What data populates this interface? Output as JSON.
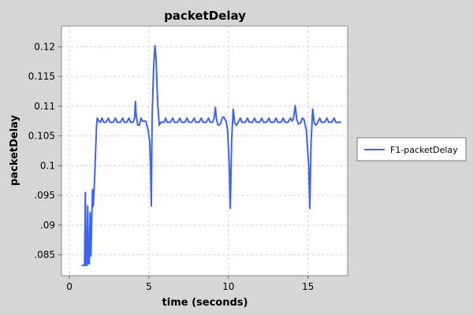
{
  "chart_data": {
    "type": "line",
    "title": "packetDelay",
    "xlabel": "time (seconds)",
    "ylabel": "packetDelay",
    "xlim": [
      -0.5,
      17.5
    ],
    "ylim": [
      0.0815,
      0.1235
    ],
    "x_ticks": [
      0,
      5,
      10,
      15
    ],
    "x_tick_labels": [
      "0",
      "5",
      "10",
      "15"
    ],
    "y_ticks": [
      0.085,
      0.09,
      0.095,
      0.1,
      0.105,
      0.11,
      0.115,
      0.12
    ],
    "y_tick_labels": [
      ".085",
      ".09",
      ".095",
      "0.1",
      "0.105",
      "0.11",
      "0.115",
      "0.12"
    ],
    "grid": true,
    "legend_position": "right",
    "series": [
      {
        "name": "F1-packetDelay",
        "color": "#3c64f0",
        "points": [
          [
            0.8,
            0.0832
          ],
          [
            0.95,
            0.0832
          ],
          [
            1.0,
            0.0955
          ],
          [
            1.05,
            0.0832
          ],
          [
            1.1,
            0.0832
          ],
          [
            1.15,
            0.0932
          ],
          [
            1.2,
            0.0835
          ],
          [
            1.25,
            0.0835
          ],
          [
            1.3,
            0.0921
          ],
          [
            1.35,
            0.0848
          ],
          [
            1.45,
            0.096
          ],
          [
            1.5,
            0.0932
          ],
          [
            1.55,
            0.0958
          ],
          [
            1.6,
            0.099
          ],
          [
            1.7,
            0.1065
          ],
          [
            1.75,
            0.108
          ],
          [
            1.85,
            0.1075
          ],
          [
            1.95,
            0.1073
          ],
          [
            2.05,
            0.108
          ],
          [
            2.15,
            0.1073
          ],
          [
            2.3,
            0.1073
          ],
          [
            2.45,
            0.108
          ],
          [
            2.55,
            0.1073
          ],
          [
            2.75,
            0.1073
          ],
          [
            2.9,
            0.108
          ],
          [
            3.0,
            0.1073
          ],
          [
            3.2,
            0.1073
          ],
          [
            3.35,
            0.108
          ],
          [
            3.45,
            0.1073
          ],
          [
            3.6,
            0.1073
          ],
          [
            3.75,
            0.108
          ],
          [
            3.85,
            0.1073
          ],
          [
            4.0,
            0.1073
          ],
          [
            4.1,
            0.108
          ],
          [
            4.15,
            0.1108
          ],
          [
            4.2,
            0.1085
          ],
          [
            4.3,
            0.1068
          ],
          [
            4.4,
            0.1068
          ],
          [
            4.5,
            0.108
          ],
          [
            4.6,
            0.1075
          ],
          [
            4.8,
            0.1075
          ],
          [
            4.95,
            0.106
          ],
          [
            5.05,
            0.104
          ],
          [
            5.1,
            0.1
          ],
          [
            5.15,
            0.0932
          ],
          [
            5.2,
            0.108
          ],
          [
            5.3,
            0.1168
          ],
          [
            5.38,
            0.1202
          ],
          [
            5.45,
            0.118
          ],
          [
            5.55,
            0.1105
          ],
          [
            5.65,
            0.1068
          ],
          [
            5.75,
            0.1073
          ],
          [
            5.95,
            0.1073
          ],
          [
            6.05,
            0.108
          ],
          [
            6.15,
            0.1073
          ],
          [
            6.35,
            0.1073
          ],
          [
            6.5,
            0.108
          ],
          [
            6.6,
            0.1073
          ],
          [
            6.8,
            0.1073
          ],
          [
            6.95,
            0.108
          ],
          [
            7.05,
            0.1073
          ],
          [
            7.25,
            0.1073
          ],
          [
            7.4,
            0.108
          ],
          [
            7.5,
            0.1073
          ],
          [
            7.7,
            0.1073
          ],
          [
            7.85,
            0.108
          ],
          [
            7.95,
            0.1073
          ],
          [
            8.15,
            0.1073
          ],
          [
            8.3,
            0.108
          ],
          [
            8.4,
            0.1073
          ],
          [
            8.6,
            0.1073
          ],
          [
            8.75,
            0.108
          ],
          [
            8.85,
            0.1073
          ],
          [
            9.0,
            0.1073
          ],
          [
            9.1,
            0.108
          ],
          [
            9.18,
            0.1098
          ],
          [
            9.25,
            0.1078
          ],
          [
            9.35,
            0.1068
          ],
          [
            9.5,
            0.107
          ],
          [
            9.6,
            0.108
          ],
          [
            9.7,
            0.1082
          ],
          [
            9.85,
            0.1075
          ],
          [
            9.95,
            0.106
          ],
          [
            10.05,
            0.1
          ],
          [
            10.12,
            0.0928
          ],
          [
            10.2,
            0.104
          ],
          [
            10.3,
            0.1095
          ],
          [
            10.4,
            0.1072
          ],
          [
            10.5,
            0.1068
          ],
          [
            10.6,
            0.1072
          ],
          [
            10.75,
            0.108
          ],
          [
            10.85,
            0.1073
          ],
          [
            11.05,
            0.1073
          ],
          [
            11.2,
            0.108
          ],
          [
            11.3,
            0.1073
          ],
          [
            11.5,
            0.1073
          ],
          [
            11.65,
            0.108
          ],
          [
            11.75,
            0.1073
          ],
          [
            11.95,
            0.1073
          ],
          [
            12.1,
            0.108
          ],
          [
            12.2,
            0.1073
          ],
          [
            12.4,
            0.1073
          ],
          [
            12.55,
            0.108
          ],
          [
            12.65,
            0.1073
          ],
          [
            12.85,
            0.1073
          ],
          [
            13.0,
            0.108
          ],
          [
            13.1,
            0.1073
          ],
          [
            13.3,
            0.1073
          ],
          [
            13.45,
            0.108
          ],
          [
            13.55,
            0.1073
          ],
          [
            13.75,
            0.1073
          ],
          [
            13.9,
            0.108
          ],
          [
            14.0,
            0.1075
          ],
          [
            14.1,
            0.108
          ],
          [
            14.2,
            0.1101
          ],
          [
            14.3,
            0.1078
          ],
          [
            14.4,
            0.107
          ],
          [
            14.55,
            0.1072
          ],
          [
            14.65,
            0.108
          ],
          [
            14.75,
            0.1078
          ],
          [
            14.9,
            0.106
          ],
          [
            15.05,
            0.1
          ],
          [
            15.12,
            0.0928
          ],
          [
            15.2,
            0.104
          ],
          [
            15.3,
            0.1095
          ],
          [
            15.4,
            0.1072
          ],
          [
            15.5,
            0.1068
          ],
          [
            15.6,
            0.1072
          ],
          [
            15.75,
            0.108
          ],
          [
            15.85,
            0.1073
          ],
          [
            16.05,
            0.1073
          ],
          [
            16.2,
            0.108
          ],
          [
            16.3,
            0.1073
          ],
          [
            16.5,
            0.1073
          ],
          [
            16.65,
            0.108
          ],
          [
            16.75,
            0.1073
          ],
          [
            16.95,
            0.1073
          ],
          [
            17.05,
            0.1073
          ]
        ]
      }
    ]
  }
}
